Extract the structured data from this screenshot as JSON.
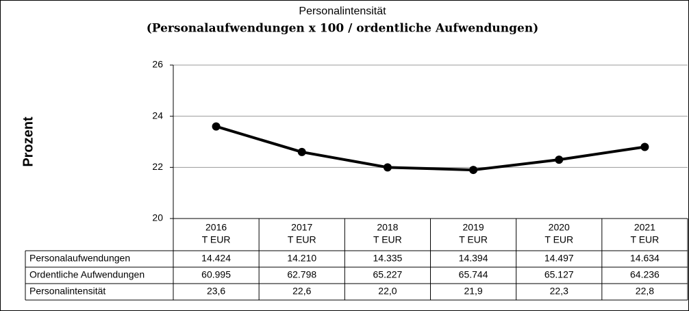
{
  "chart_data": {
    "type": "line",
    "title": "Personalintensität",
    "subtitle": "(Personalaufwendungen x 100 / ordentliche Aufwendungen)",
    "y_label": "Prozent",
    "categories": [
      "2016",
      "2017",
      "2018",
      "2019",
      "2020",
      "2021"
    ],
    "unit": "T EUR",
    "series": [
      {
        "name": "Personalintensität",
        "color": "#000000",
        "values": [
          23.6,
          22.6,
          22.0,
          21.9,
          22.3,
          22.8
        ],
        "value_labels": [
          "23,6",
          "22,6",
          "22,0",
          "21,9",
          "22,3",
          "22,8"
        ]
      }
    ],
    "table": [
      {
        "name": "Personalaufwendungen",
        "cells": [
          "14.424",
          "14.210",
          "14.335",
          "14.394",
          "14.497",
          "14.634"
        ]
      },
      {
        "name": "Ordentliche Aufwendungen",
        "cells": [
          "60.995",
          "62.798",
          "65.227",
          "65.744",
          "65.127",
          "64.236"
        ]
      }
    ],
    "ylim": [
      20,
      26
    ],
    "yticks": [
      20,
      22,
      24,
      26
    ],
    "grid": true
  }
}
